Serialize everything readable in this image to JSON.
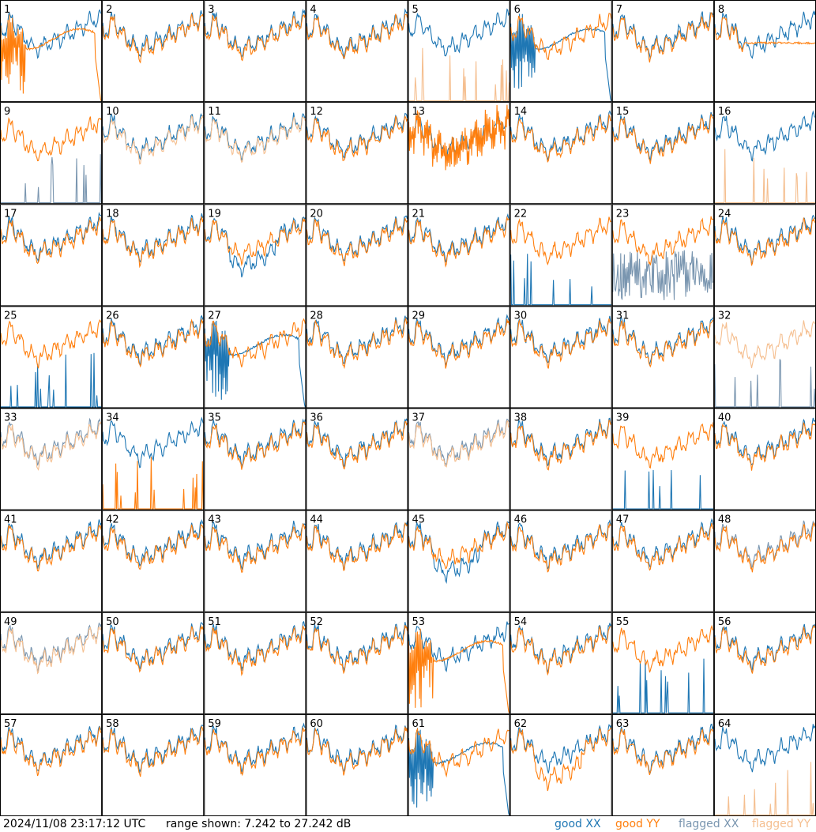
{
  "chart_data": {
    "type": "line",
    "title": "",
    "timestamp": "2024/11/08 23:17:12 UTC",
    "range_text": "range shown: 7.242 to 27.242 dB",
    "ylim_db": [
      7.242,
      27.242
    ],
    "grid": {
      "rows": 8,
      "cols": 8
    },
    "panel_labels": [
      "1",
      "2",
      "3",
      "4",
      "5",
      "6",
      "7",
      "8",
      "9",
      "10",
      "11",
      "12",
      "13",
      "14",
      "15",
      "16",
      "17",
      "18",
      "19",
      "20",
      "21",
      "22",
      "23",
      "24",
      "25",
      "26",
      "27",
      "28",
      "29",
      "30",
      "31",
      "32",
      "33",
      "34",
      "35",
      "36",
      "37",
      "38",
      "39",
      "40",
      "41",
      "42",
      "43",
      "44",
      "45",
      "46",
      "47",
      "48",
      "49",
      "50",
      "51",
      "52",
      "53",
      "54",
      "55",
      "56",
      "57",
      "58",
      "59",
      "60",
      "61",
      "62",
      "63",
      "64"
    ],
    "legend": [
      {
        "label": "good XX",
        "color": "#1f77b4"
      },
      {
        "label": "good YY",
        "color": "#ff7f0e"
      },
      {
        "label": "flagged XX",
        "color": "#7a96b0"
      },
      {
        "label": "flagged YY",
        "color": "#f5bf90"
      }
    ],
    "panels": {
      "default": {
        "xx": "good",
        "yy": "good",
        "xx_mode": "normal",
        "yy_mode": "normal"
      },
      "1": {
        "yy_mode": "drop"
      },
      "5": {
        "yy": "flagged",
        "yy_mode": "spikes"
      },
      "6": {
        "xx_mode": "drop"
      },
      "8": {
        "yy_mode": "flat"
      },
      "9": {
        "xx": "flagged",
        "xx_mode": "spikes"
      },
      "10": {
        "yy": "flagged"
      },
      "11": {
        "yy": "flagged"
      },
      "13": {
        "yy_mode": "noisy"
      },
      "16": {
        "yy": "flagged",
        "yy_mode": "spikes"
      },
      "19": {
        "xx_mode": "low"
      },
      "22": {
        "xx_mode": "spikes"
      },
      "23": {
        "xx": "flagged",
        "xx_mode": "noisyLow"
      },
      "25": {
        "xx_mode": "spikes"
      },
      "27": {
        "xx_mode": "drop"
      },
      "32": {
        "xx": "flagged",
        "yy": "flagged",
        "xx_mode": "spikes"
      },
      "33": {
        "xx": "flagged",
        "yy": "flagged"
      },
      "34": {
        "yy_mode": "spikes"
      },
      "37": {
        "xx": "flagged",
        "yy": "flagged"
      },
      "39": {
        "xx_mode": "spikes"
      },
      "45": {
        "xx_mode": "low"
      },
      "48": {
        "xx": "flagged"
      },
      "49": {
        "xx": "flagged",
        "yy": "flagged"
      },
      "53": {
        "yy_mode": "drop"
      },
      "55": {
        "xx_mode": "spikes"
      },
      "61": {
        "xx_mode": "drop"
      },
      "62": {
        "yy_mode": "low"
      },
      "64": {
        "yy": "flagged",
        "yy_mode": "spikes"
      }
    }
  }
}
